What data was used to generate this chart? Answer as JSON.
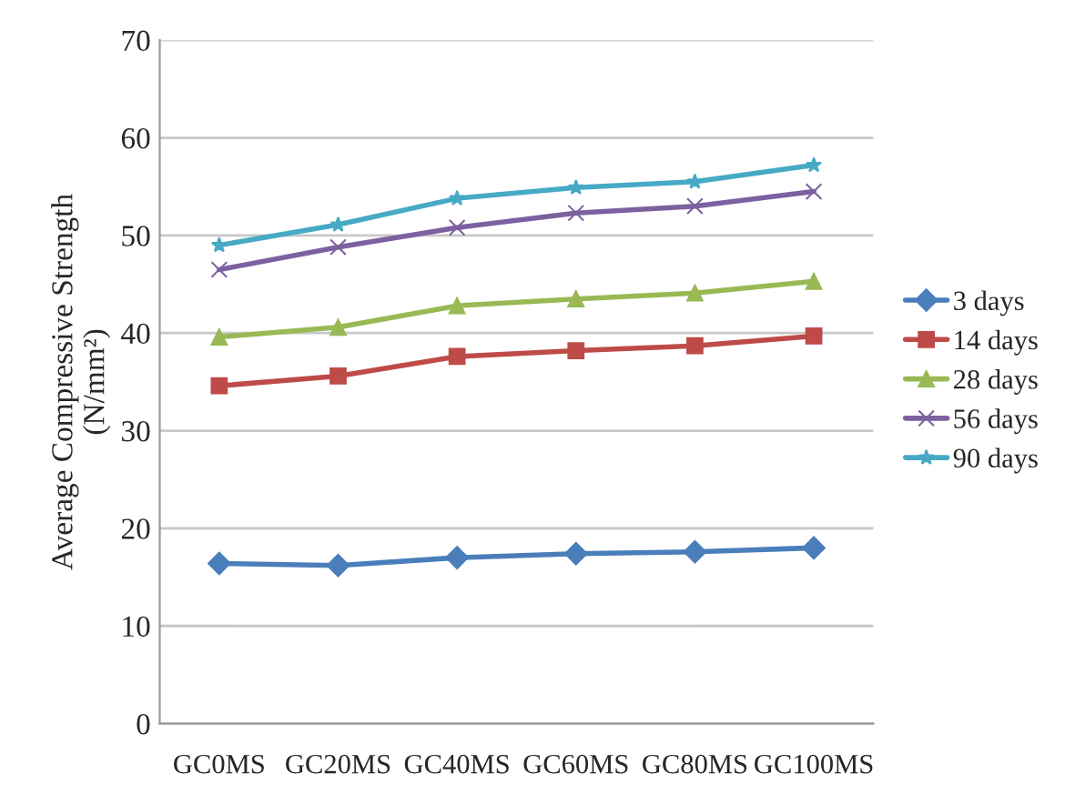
{
  "chart_data": {
    "type": "line",
    "ylabel": "Average Compressive Strength\n(N/mm²)",
    "categories": [
      "GC0MS",
      "GC20MS",
      "GC40MS",
      "GC60MS",
      "GC80MS",
      "GC100MS"
    ],
    "series": [
      {
        "name": "3 days",
        "color": "#4a7ebb",
        "marker": "diamond",
        "values": [
          16.4,
          16.2,
          17.0,
          17.4,
          17.6,
          18.0
        ]
      },
      {
        "name": "14 days",
        "color": "#be4b48",
        "marker": "square",
        "values": [
          34.6,
          35.6,
          37.6,
          38.2,
          38.7,
          39.7
        ]
      },
      {
        "name": "28 days",
        "color": "#98b954",
        "marker": "triangle",
        "values": [
          39.6,
          40.6,
          42.8,
          43.5,
          44.1,
          45.3
        ]
      },
      {
        "name": "56 days",
        "color": "#7d60a0",
        "marker": "cross",
        "values": [
          46.5,
          48.8,
          50.8,
          52.3,
          53.0,
          54.5
        ]
      },
      {
        "name": "90 days",
        "color": "#46aac5",
        "marker": "star",
        "values": [
          49.0,
          51.1,
          53.8,
          54.9,
          55.5,
          57.2
        ]
      }
    ],
    "ylim": [
      0,
      70
    ],
    "yticks": [
      0,
      10,
      20,
      30,
      40,
      50,
      60,
      70
    ],
    "grid": "y",
    "legend": "right"
  }
}
